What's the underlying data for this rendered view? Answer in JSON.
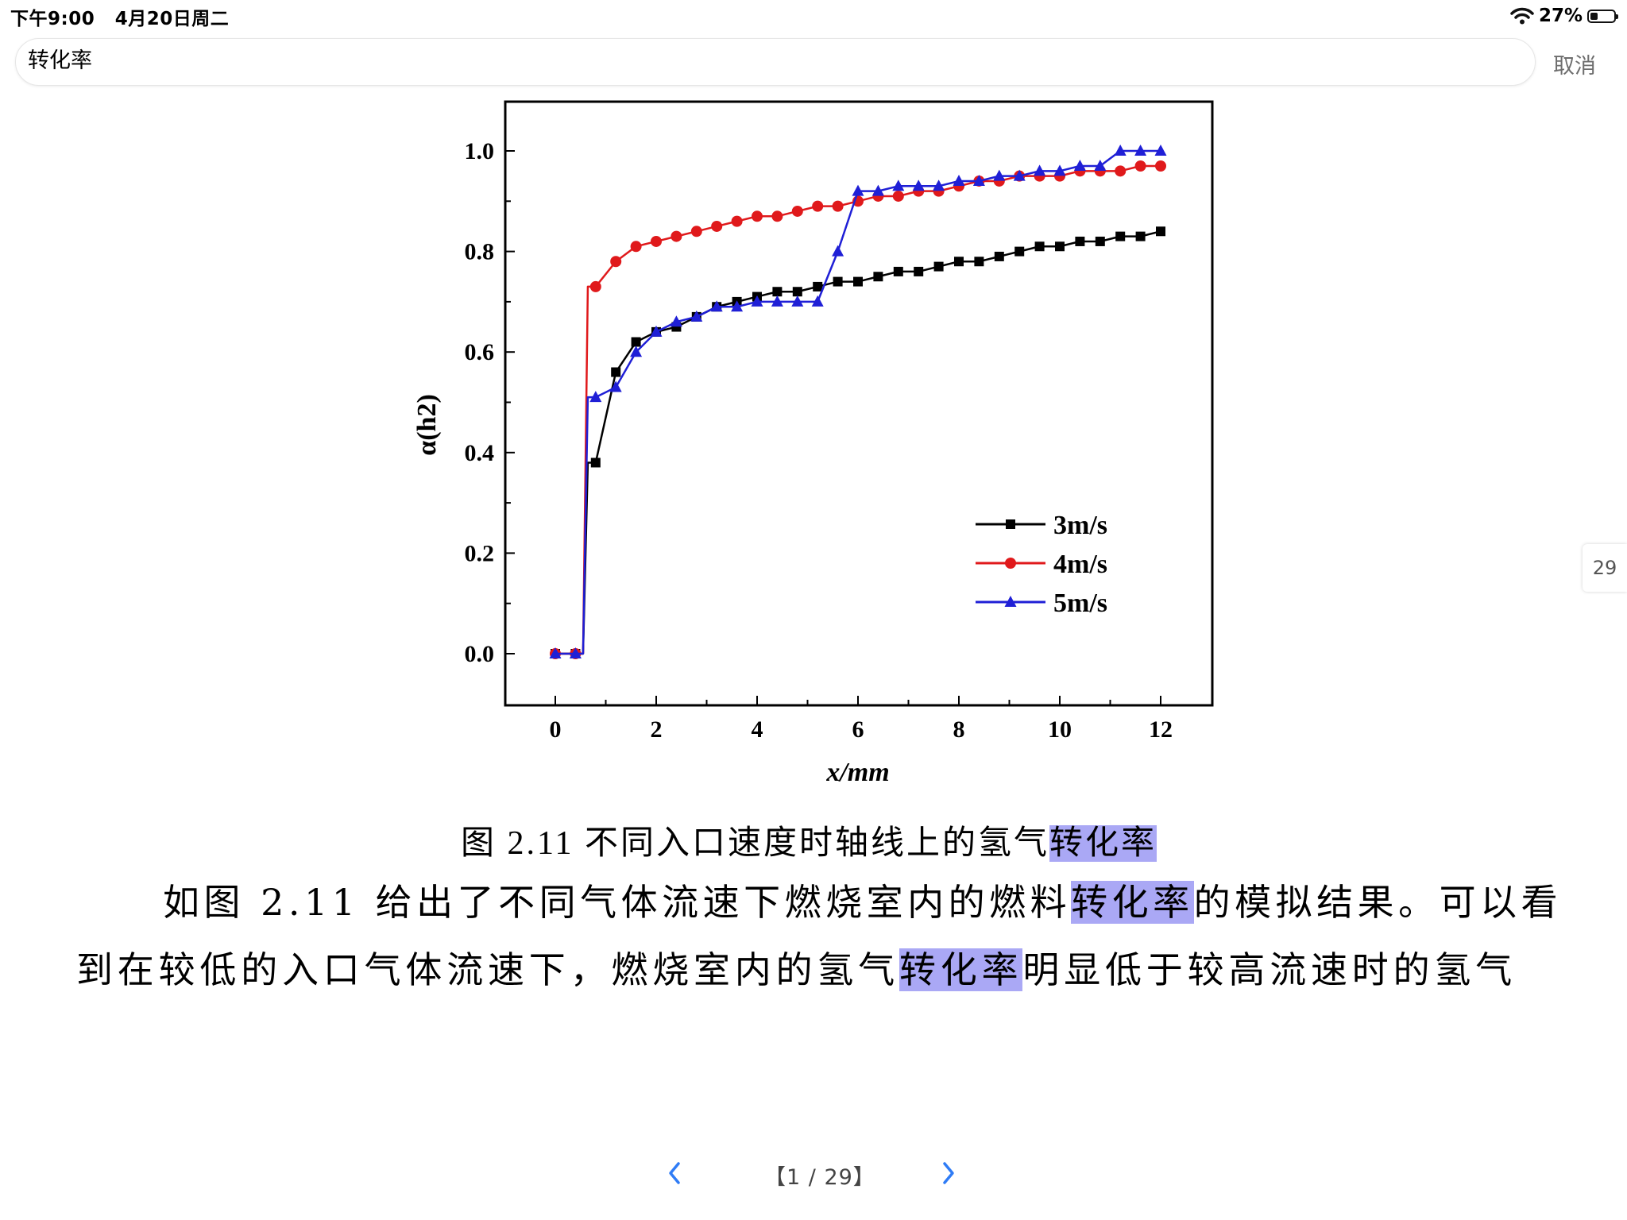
{
  "status": {
    "time": "下午9:00",
    "date": "4月20日周二",
    "battery": "27%",
    "battery_level": 0.27
  },
  "search": {
    "query": "转化率",
    "cancel": "取消"
  },
  "chart_data": {
    "type": "line",
    "xlabel": "x/mm",
    "ylabel": "α(h2)",
    "xlim": [
      -1,
      13
    ],
    "ylim": [
      -0.1,
      1.1
    ],
    "xticks": [
      "0",
      "2",
      "4",
      "6",
      "8",
      "10",
      "12"
    ],
    "yticks": [
      "0.0",
      "0.2",
      "0.4",
      "0.6",
      "0.8",
      "1.0"
    ],
    "grid": false,
    "legend_position": "bottom-right",
    "series": [
      {
        "name": "3m/s",
        "color": "#000000",
        "marker": "square",
        "x": [
          0,
          0.4,
          0.8,
          1.2,
          1.6,
          2.0,
          2.4,
          2.8,
          3.2,
          3.6,
          4.0,
          4.4,
          4.8,
          5.2,
          5.6,
          6.0,
          6.4,
          6.8,
          7.2,
          7.6,
          8.0,
          8.4,
          8.8,
          9.2,
          9.6,
          10.0,
          10.4,
          10.8,
          11.2,
          11.6,
          12.0
        ],
        "y": [
          0.0,
          0.0,
          0.38,
          0.56,
          0.62,
          0.64,
          0.65,
          0.67,
          0.69,
          0.7,
          0.71,
          0.72,
          0.72,
          0.73,
          0.74,
          0.74,
          0.75,
          0.76,
          0.76,
          0.77,
          0.78,
          0.78,
          0.79,
          0.8,
          0.81,
          0.81,
          0.82,
          0.82,
          0.83,
          0.83,
          0.84
        ]
      },
      {
        "name": "4m/s",
        "color": "#e0191b",
        "marker": "circle",
        "x": [
          0,
          0.4,
          0.8,
          1.2,
          1.6,
          2.0,
          2.4,
          2.8,
          3.2,
          3.6,
          4.0,
          4.4,
          4.8,
          5.2,
          5.6,
          6.0,
          6.4,
          6.8,
          7.2,
          7.6,
          8.0,
          8.4,
          8.8,
          9.2,
          9.6,
          10.0,
          10.4,
          10.8,
          11.2,
          11.6,
          12.0
        ],
        "y": [
          0.0,
          0.0,
          0.73,
          0.78,
          0.81,
          0.82,
          0.83,
          0.84,
          0.85,
          0.86,
          0.87,
          0.87,
          0.88,
          0.89,
          0.89,
          0.9,
          0.91,
          0.91,
          0.92,
          0.92,
          0.93,
          0.94,
          0.94,
          0.95,
          0.95,
          0.95,
          0.96,
          0.96,
          0.96,
          0.97,
          0.97
        ]
      },
      {
        "name": "5m/s",
        "color": "#1f1fd6",
        "marker": "triangle",
        "x": [
          0,
          0.4,
          0.8,
          1.2,
          1.6,
          2.0,
          2.4,
          2.8,
          3.2,
          3.6,
          4.0,
          4.4,
          4.8,
          5.2,
          5.6,
          6.0,
          6.4,
          6.8,
          7.2,
          7.6,
          8.0,
          8.4,
          8.8,
          9.2,
          9.6,
          10.0,
          10.4,
          10.8,
          11.2,
          11.6,
          12.0
        ],
        "y": [
          0.0,
          0.0,
          0.51,
          0.53,
          0.6,
          0.64,
          0.66,
          0.67,
          0.69,
          0.69,
          0.7,
          0.7,
          0.7,
          0.7,
          0.8,
          0.92,
          0.92,
          0.93,
          0.93,
          0.93,
          0.94,
          0.94,
          0.95,
          0.95,
          0.96,
          0.96,
          0.97,
          0.97,
          1.0,
          1.0,
          1.0
        ]
      }
    ]
  },
  "caption": {
    "prefix": "图 2.11  不同入口速度时轴线上的氢气",
    "highlight": "转化率"
  },
  "paragraph": {
    "line1_a": "如图 2.11 给出了不同气体流速下燃烧室内的燃料",
    "line1_hl": "转化率",
    "line1_b": "的模拟结果。可以看",
    "line2_a": "到在较低的入口气体流速下，燃烧室内的氢气",
    "line2_hl": "转化率",
    "line2_b": "明显低于较高流速时的氢气"
  },
  "side_page": "29",
  "pager": {
    "indicator": "【1 / 29】"
  }
}
